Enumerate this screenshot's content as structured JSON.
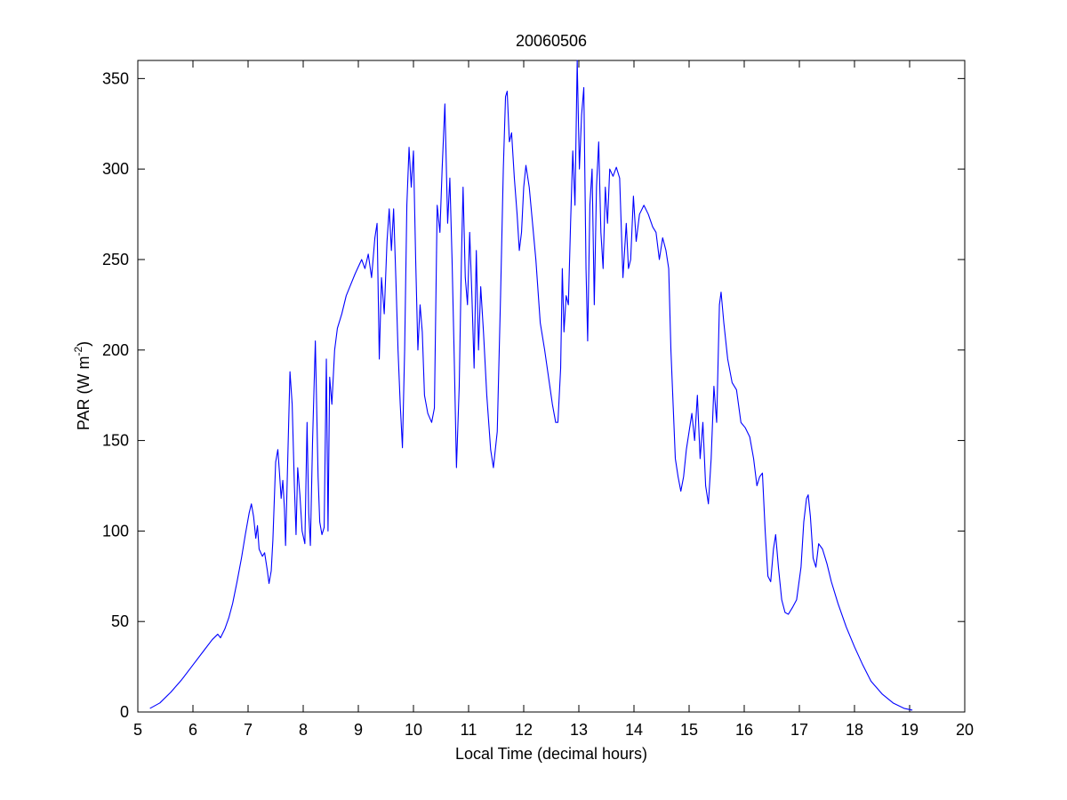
{
  "chart_data": {
    "type": "line",
    "title": "20060506",
    "xlabel": "Local Time (decimal hours)",
    "ylabel": "PAR (W m",
    "ylabel_superscript": "-2",
    "ylabel_suffix": ")",
    "xlim": [
      5,
      20
    ],
    "ylim": [
      0,
      360
    ],
    "xticks": [
      5,
      6,
      7,
      8,
      9,
      10,
      11,
      12,
      13,
      14,
      15,
      16,
      17,
      18,
      19,
      20
    ],
    "yticks": [
      0,
      50,
      100,
      150,
      200,
      250,
      300,
      350
    ],
    "grid": false,
    "legend": "none",
    "line_color": "#0000ff",
    "series": [
      {
        "points": [
          [
            5.22,
            2
          ],
          [
            5.4,
            5
          ],
          [
            5.6,
            11
          ],
          [
            5.8,
            18
          ],
          [
            6.0,
            26
          ],
          [
            6.2,
            34
          ],
          [
            6.35,
            40
          ],
          [
            6.45,
            43
          ],
          [
            6.5,
            41
          ],
          [
            6.58,
            46
          ],
          [
            6.65,
            52
          ],
          [
            6.72,
            60
          ],
          [
            6.8,
            72
          ],
          [
            6.88,
            85
          ],
          [
            6.95,
            98
          ],
          [
            7.02,
            110
          ],
          [
            7.06,
            115
          ],
          [
            7.1,
            108
          ],
          [
            7.14,
            96
          ],
          [
            7.17,
            103
          ],
          [
            7.2,
            90
          ],
          [
            7.26,
            86
          ],
          [
            7.3,
            88
          ],
          [
            7.35,
            78
          ],
          [
            7.38,
            71
          ],
          [
            7.42,
            78
          ],
          [
            7.45,
            95
          ],
          [
            7.5,
            138
          ],
          [
            7.54,
            145
          ],
          [
            7.57,
            132
          ],
          [
            7.6,
            118
          ],
          [
            7.63,
            128
          ],
          [
            7.66,
            112
          ],
          [
            7.68,
            92
          ],
          [
            7.72,
            140
          ],
          [
            7.76,
            188
          ],
          [
            7.8,
            170
          ],
          [
            7.84,
            125
          ],
          [
            7.87,
            98
          ],
          [
            7.9,
            135
          ],
          [
            7.94,
            120
          ],
          [
            7.98,
            100
          ],
          [
            8.03,
            93
          ],
          [
            8.07,
            160
          ],
          [
            8.1,
            110
          ],
          [
            8.13,
            92
          ],
          [
            8.17,
            150
          ],
          [
            8.22,
            205
          ],
          [
            8.27,
            130
          ],
          [
            8.3,
            105
          ],
          [
            8.34,
            98
          ],
          [
            8.38,
            102
          ],
          [
            8.42,
            195
          ],
          [
            8.45,
            100
          ],
          [
            8.48,
            185
          ],
          [
            8.52,
            170
          ],
          [
            8.57,
            200
          ],
          [
            8.62,
            212
          ],
          [
            8.7,
            220
          ],
          [
            8.78,
            230
          ],
          [
            8.86,
            236
          ],
          [
            8.94,
            242
          ],
          [
            9.0,
            246
          ],
          [
            9.06,
            250
          ],
          [
            9.12,
            245
          ],
          [
            9.18,
            253
          ],
          [
            9.24,
            240
          ],
          [
            9.3,
            262
          ],
          [
            9.34,
            270
          ],
          [
            9.38,
            195
          ],
          [
            9.42,
            240
          ],
          [
            9.47,
            220
          ],
          [
            9.52,
            260
          ],
          [
            9.56,
            278
          ],
          [
            9.6,
            255
          ],
          [
            9.64,
            278
          ],
          [
            9.68,
            240
          ],
          [
            9.72,
            200
          ],
          [
            9.76,
            170
          ],
          [
            9.8,
            146
          ],
          [
            9.84,
            200
          ],
          [
            9.88,
            280
          ],
          [
            9.92,
            312
          ],
          [
            9.96,
            290
          ],
          [
            10.0,
            310
          ],
          [
            10.04,
            250
          ],
          [
            10.08,
            200
          ],
          [
            10.12,
            225
          ],
          [
            10.16,
            210
          ],
          [
            10.2,
            175
          ],
          [
            10.26,
            165
          ],
          [
            10.33,
            160
          ],
          [
            10.38,
            168
          ],
          [
            10.43,
            280
          ],
          [
            10.48,
            265
          ],
          [
            10.52,
            300
          ],
          [
            10.57,
            336
          ],
          [
            10.62,
            270
          ],
          [
            10.66,
            295
          ],
          [
            10.7,
            250
          ],
          [
            10.74,
            195
          ],
          [
            10.78,
            135
          ],
          [
            10.83,
            180
          ],
          [
            10.87,
            250
          ],
          [
            10.9,
            290
          ],
          [
            10.94,
            240
          ],
          [
            10.98,
            225
          ],
          [
            11.02,
            265
          ],
          [
            11.06,
            230
          ],
          [
            11.1,
            190
          ],
          [
            11.14,
            255
          ],
          [
            11.18,
            200
          ],
          [
            11.22,
            235
          ],
          [
            11.27,
            210
          ],
          [
            11.33,
            175
          ],
          [
            11.4,
            145
          ],
          [
            11.45,
            135
          ],
          [
            11.52,
            155
          ],
          [
            11.58,
            230
          ],
          [
            11.63,
            300
          ],
          [
            11.67,
            340
          ],
          [
            11.7,
            343
          ],
          [
            11.74,
            315
          ],
          [
            11.78,
            320
          ],
          [
            11.83,
            295
          ],
          [
            11.88,
            275
          ],
          [
            11.92,
            255
          ],
          [
            11.96,
            265
          ],
          [
            12.0,
            290
          ],
          [
            12.04,
            302
          ],
          [
            12.1,
            290
          ],
          [
            12.16,
            270
          ],
          [
            12.22,
            250
          ],
          [
            12.3,
            215
          ],
          [
            12.38,
            200
          ],
          [
            12.45,
            185
          ],
          [
            12.52,
            170
          ],
          [
            12.58,
            160
          ],
          [
            12.62,
            160
          ],
          [
            12.67,
            190
          ],
          [
            12.7,
            245
          ],
          [
            12.73,
            210
          ],
          [
            12.77,
            230
          ],
          [
            12.81,
            225
          ],
          [
            12.85,
            270
          ],
          [
            12.89,
            310
          ],
          [
            12.93,
            280
          ],
          [
            12.97,
            360
          ],
          [
            13.01,
            300
          ],
          [
            13.05,
            330
          ],
          [
            13.09,
            345
          ],
          [
            13.13,
            245
          ],
          [
            13.16,
            205
          ],
          [
            13.2,
            280
          ],
          [
            13.24,
            300
          ],
          [
            13.28,
            225
          ],
          [
            13.32,
            290
          ],
          [
            13.36,
            315
          ],
          [
            13.4,
            265
          ],
          [
            13.44,
            245
          ],
          [
            13.48,
            290
          ],
          [
            13.52,
            270
          ],
          [
            13.56,
            300
          ],
          [
            13.62,
            296
          ],
          [
            13.68,
            301
          ],
          [
            13.74,
            295
          ],
          [
            13.8,
            240
          ],
          [
            13.86,
            270
          ],
          [
            13.9,
            245
          ],
          [
            13.94,
            250
          ],
          [
            13.99,
            285
          ],
          [
            14.04,
            260
          ],
          [
            14.1,
            275
          ],
          [
            14.18,
            280
          ],
          [
            14.26,
            275
          ],
          [
            14.34,
            268
          ],
          [
            14.4,
            265
          ],
          [
            14.46,
            250
          ],
          [
            14.52,
            262
          ],
          [
            14.58,
            255
          ],
          [
            14.63,
            245
          ],
          [
            14.67,
            200
          ],
          [
            14.71,
            170
          ],
          [
            14.75,
            140
          ],
          [
            14.8,
            130
          ],
          [
            14.85,
            122
          ],
          [
            14.9,
            130
          ],
          [
            14.95,
            145
          ],
          [
            15.0,
            155
          ],
          [
            15.05,
            165
          ],
          [
            15.1,
            150
          ],
          [
            15.15,
            175
          ],
          [
            15.2,
            140
          ],
          [
            15.25,
            160
          ],
          [
            15.3,
            125
          ],
          [
            15.35,
            115
          ],
          [
            15.4,
            140
          ],
          [
            15.45,
            180
          ],
          [
            15.5,
            160
          ],
          [
            15.55,
            225
          ],
          [
            15.58,
            232
          ],
          [
            15.63,
            215
          ],
          [
            15.7,
            195
          ],
          [
            15.78,
            182
          ],
          [
            15.86,
            178
          ],
          [
            15.94,
            160
          ],
          [
            16.02,
            157
          ],
          [
            16.1,
            152
          ],
          [
            16.17,
            140
          ],
          [
            16.23,
            125
          ],
          [
            16.28,
            130
          ],
          [
            16.33,
            132
          ],
          [
            16.38,
            100
          ],
          [
            16.43,
            75
          ],
          [
            16.48,
            72
          ],
          [
            16.53,
            90
          ],
          [
            16.57,
            98
          ],
          [
            16.62,
            80
          ],
          [
            16.68,
            62
          ],
          [
            16.74,
            55
          ],
          [
            16.8,
            54
          ],
          [
            16.88,
            58
          ],
          [
            16.95,
            62
          ],
          [
            17.03,
            80
          ],
          [
            17.08,
            105
          ],
          [
            17.13,
            118
          ],
          [
            17.16,
            120
          ],
          [
            17.2,
            108
          ],
          [
            17.25,
            85
          ],
          [
            17.3,
            80
          ],
          [
            17.35,
            93
          ],
          [
            17.42,
            90
          ],
          [
            17.5,
            82
          ],
          [
            17.58,
            72
          ],
          [
            17.7,
            60
          ],
          [
            17.85,
            47
          ],
          [
            18.0,
            36
          ],
          [
            18.15,
            26
          ],
          [
            18.3,
            17
          ],
          [
            18.5,
            10
          ],
          [
            18.7,
            5
          ],
          [
            18.9,
            2
          ],
          [
            19.05,
            1
          ]
        ]
      }
    ]
  }
}
